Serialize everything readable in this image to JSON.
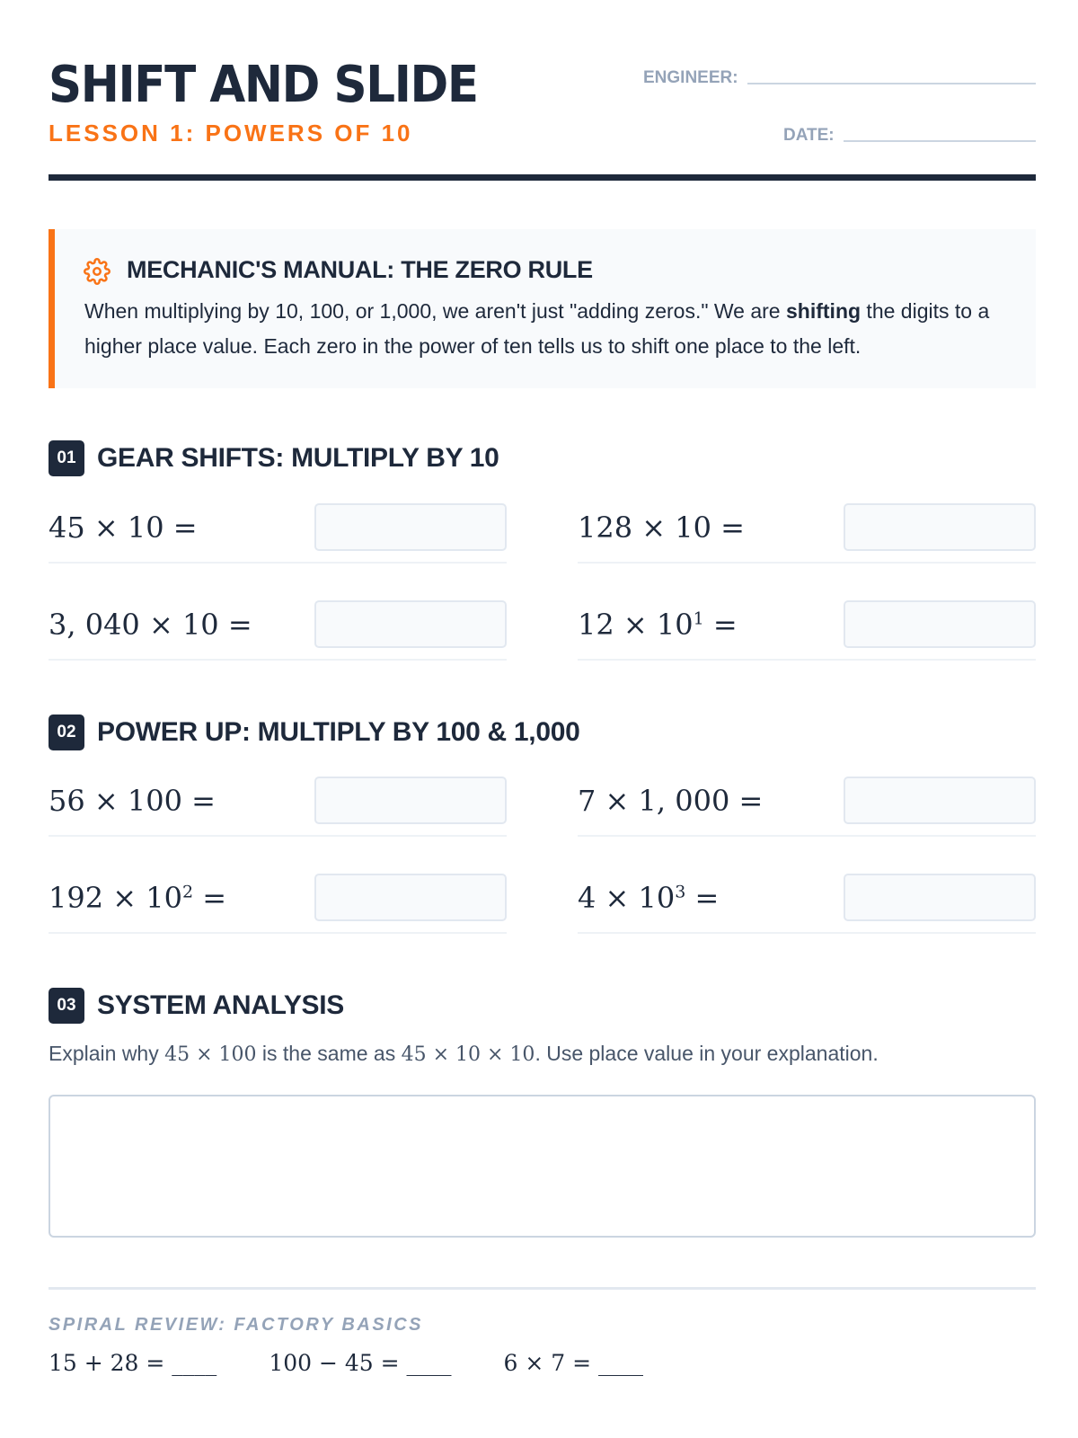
{
  "header": {
    "title": "SHIFT AND SLIDE",
    "subtitle": "LESSON 1: POWERS OF 10",
    "engineer_label": "ENGINEER:",
    "date_label": "DATE:"
  },
  "callout": {
    "icon": "gear-icon",
    "title": "MECHANIC'S MANUAL: THE ZERO RULE",
    "text_before": "When multiplying by 10, 100, or 1,000, we aren't just \"adding zeros.\" We are ",
    "text_bold": "shifting",
    "text_after": " the digits to a higher place value. Each zero in the power of ten tells us to shift one place to the left."
  },
  "sections": [
    {
      "number": "01",
      "title": "GEAR SHIFTS: MULTIPLY BY 10",
      "problems": [
        {
          "base": "45 × 10",
          "exp": "",
          "eq": " ="
        },
        {
          "base": "128 × 10",
          "exp": "",
          "eq": " ="
        },
        {
          "base": "3, 040 × 10",
          "exp": "",
          "eq": " ="
        },
        {
          "base": "12 × 10",
          "exp": "1",
          "eq": " ="
        }
      ]
    },
    {
      "number": "02",
      "title": "POWER UP: MULTIPLY BY 100 & 1,000",
      "problems": [
        {
          "base": "56 × 100",
          "exp": "",
          "eq": " ="
        },
        {
          "base": "7 × 1, 000",
          "exp": "",
          "eq": " ="
        },
        {
          "base": "192 × 10",
          "exp": "2",
          "eq": " ="
        },
        {
          "base": "4 × 10",
          "exp": "3",
          "eq": " ="
        }
      ]
    },
    {
      "number": "03",
      "title": "SYSTEM ANALYSIS",
      "prompt_a": "Explain why ",
      "prompt_m1": "45 × 100",
      "prompt_b": " is the same as ",
      "prompt_m2": "45 × 10 × 10",
      "prompt_c": ". Use place value in your explanation."
    }
  ],
  "spiral": {
    "title": "SPIRAL REVIEW: FACTORY BASICS",
    "problems": [
      "15 + 28 = ____",
      "100 − 45 = ____",
      "6 × 7 = ____"
    ]
  },
  "colors": {
    "accent": "#f97316",
    "dark": "#1e293b",
    "muted": "#94a3b8"
  }
}
